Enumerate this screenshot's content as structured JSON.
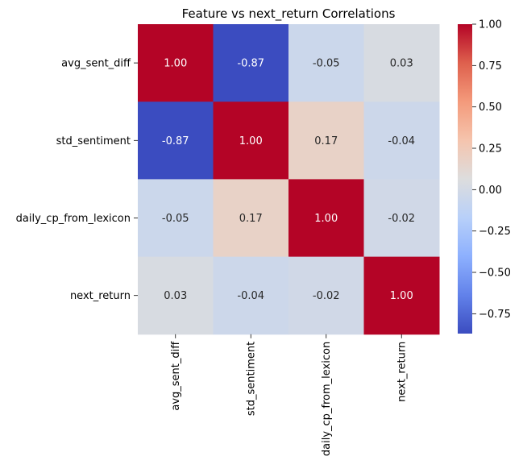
{
  "chart_data": {
    "type": "heatmap",
    "title": "Feature vs next_return Correlations",
    "xlabel": "",
    "ylabel": "",
    "rows": [
      "avg_sent_diff",
      "std_sentiment",
      "daily_cp_from_lexicon",
      "next_return"
    ],
    "columns": [
      "avg_sent_diff",
      "std_sentiment",
      "daily_cp_from_lexicon",
      "next_return"
    ],
    "values": [
      [
        1.0,
        -0.87,
        -0.05,
        0.03
      ],
      [
        -0.87,
        1.0,
        0.17,
        -0.04
      ],
      [
        -0.05,
        0.17,
        1.0,
        -0.02
      ],
      [
        0.03,
        -0.04,
        -0.02,
        1.0
      ]
    ],
    "value_format": "0.00",
    "colormap": "coolwarm",
    "colorbar": {
      "range": [
        -0.87,
        1.0
      ],
      "ticks": [
        1.0,
        0.75,
        0.5,
        0.25,
        0.0,
        -0.25,
        -0.5,
        -0.75
      ],
      "tick_labels": [
        "1.00",
        "0.75",
        "0.50",
        "0.25",
        "0.00",
        "−0.25",
        "−0.50",
        "−0.75"
      ]
    },
    "grid": false,
    "legend": "colorbar-right"
  }
}
